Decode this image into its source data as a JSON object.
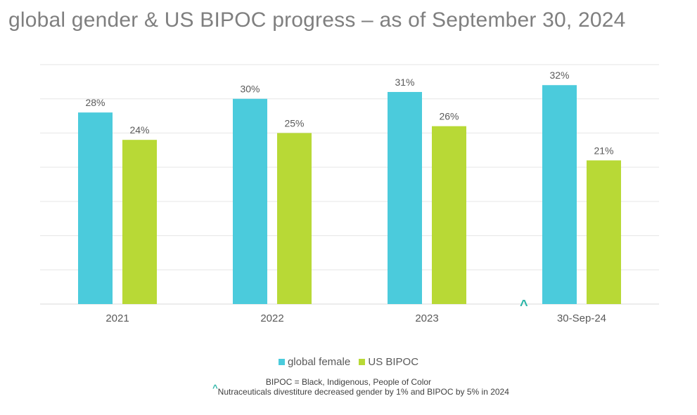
{
  "title": "global gender & US BIPOC progress – as of September 30, 2024",
  "chart_data": {
    "type": "bar",
    "title": "global gender & US BIPOC progress – as of September 30, 2024",
    "categories": [
      "2021",
      "2022",
      "2023",
      "30-Sep-24"
    ],
    "series": [
      {
        "name": "global female",
        "values": [
          28,
          30,
          31,
          32
        ],
        "labels": [
          "28%",
          "30%",
          "31%",
          "32%"
        ],
        "color": "#4bcbdc"
      },
      {
        "name": "US BIPOC",
        "values": [
          24,
          25,
          26,
          21
        ],
        "labels": [
          "24%",
          "25%",
          "26%",
          "21%"
        ],
        "color": "#b8d936"
      }
    ],
    "xlabel": "",
    "ylabel": "",
    "ylim": [
      0,
      35
    ],
    "gridlines": true,
    "legend": "bottom"
  },
  "annotations": {
    "caret": "^",
    "caret_color": "#2bb5a7"
  },
  "footnotes": {
    "definition": "BIPOC = Black, Indigenous, People of Color",
    "caret": "^",
    "note": "Nutraceuticals divestiture decreased gender by 1% and BIPOC by 5% in 2024"
  },
  "colors": {
    "grid": "#e6e6e6",
    "axis": "#d9d9d9",
    "label": "#595959"
  }
}
